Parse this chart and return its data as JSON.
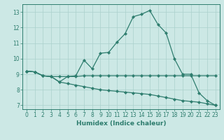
{
  "line1_x": [
    0,
    1,
    2,
    3,
    4,
    5,
    6,
    7,
    8,
    9,
    10,
    11,
    12,
    13,
    14,
    15,
    16,
    17,
    18,
    19,
    20,
    21,
    22,
    23
  ],
  "line1_y": [
    9.2,
    9.15,
    8.9,
    8.85,
    8.5,
    8.85,
    8.9,
    9.9,
    9.35,
    10.35,
    10.4,
    11.05,
    11.6,
    12.7,
    12.85,
    13.1,
    12.2,
    11.65,
    10.0,
    9.0,
    9.0,
    7.8,
    7.3,
    7.0
  ],
  "line2_x": [
    0,
    1,
    2,
    3,
    4,
    5,
    6,
    7,
    8,
    9,
    10,
    11,
    12,
    13,
    14,
    15,
    16,
    17,
    18,
    19,
    20,
    21,
    22,
    23
  ],
  "line2_y": [
    9.2,
    9.15,
    8.9,
    8.85,
    8.85,
    8.85,
    8.85,
    8.9,
    8.9,
    8.9,
    8.9,
    8.9,
    8.9,
    8.9,
    8.9,
    8.9,
    8.9,
    8.9,
    8.9,
    8.9,
    8.9,
    8.9,
    8.9,
    8.9
  ],
  "line3_x": [
    0,
    1,
    2,
    3,
    4,
    5,
    6,
    7,
    8,
    9,
    10,
    11,
    12,
    13,
    14,
    15,
    16,
    17,
    18,
    19,
    20,
    21,
    22,
    23
  ],
  "line3_y": [
    9.2,
    9.15,
    8.9,
    8.85,
    8.5,
    8.4,
    8.3,
    8.2,
    8.1,
    8.0,
    7.95,
    7.9,
    7.85,
    7.8,
    7.75,
    7.7,
    7.6,
    7.5,
    7.4,
    7.3,
    7.25,
    7.2,
    7.1,
    7.0
  ],
  "line_color": "#2e7d6e",
  "bg_color": "#cce8e5",
  "grid_color": "#aad0cc",
  "xlabel": "Humidex (Indice chaleur)",
  "xlim": [
    -0.5,
    23.5
  ],
  "ylim": [
    6.75,
    13.5
  ],
  "yticks": [
    7,
    8,
    9,
    10,
    11,
    12,
    13
  ],
  "xticks": [
    0,
    1,
    2,
    3,
    4,
    5,
    6,
    7,
    8,
    9,
    10,
    11,
    12,
    13,
    14,
    15,
    16,
    17,
    18,
    19,
    20,
    21,
    22,
    23
  ],
  "marker": "D",
  "markersize": 2.2,
  "linewidth": 0.9,
  "label_fontsize": 6.5,
  "tick_fontsize": 5.5
}
